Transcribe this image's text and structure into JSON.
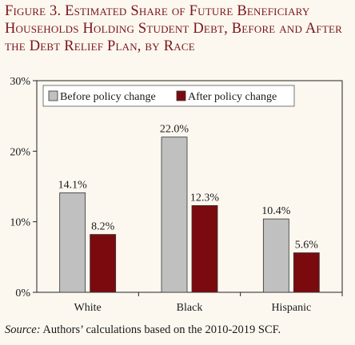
{
  "figure": {
    "title": "Figure 3. Estimated Share of Future Beneficiary Households Holding Student Debt, Before and After the Debt Relief Plan, by Race",
    "source_label": "Source:",
    "source_text": " Authors’ calculations based on the 2010-2019 SCF."
  },
  "chart_data": {
    "type": "bar",
    "title": "Figure 3. Estimated Share of Future Beneficiary Households Holding Student Debt, Before and After the Debt Relief Plan, by Race",
    "xlabel": "",
    "ylabel": "",
    "categories": [
      "White",
      "Black",
      "Hispanic"
    ],
    "series": [
      {
        "name": "Before policy change",
        "color": "#c0c0c0",
        "values": [
          14.1,
          22.0,
          10.4
        ],
        "labels": [
          "14.1%",
          "22.0%",
          "10.4%"
        ]
      },
      {
        "name": "After policy change",
        "color": "#7b0a0f",
        "values": [
          8.2,
          12.3,
          5.6
        ],
        "labels": [
          "8.2%",
          "12.3%",
          "5.6%"
        ]
      }
    ],
    "ylim": [
      0,
      30
    ],
    "yticks": [
      0,
      10,
      20,
      30
    ],
    "ytick_labels": [
      "0%",
      "10%",
      "20%",
      "30%"
    ],
    "grid": false,
    "legend_position": "top-left"
  }
}
